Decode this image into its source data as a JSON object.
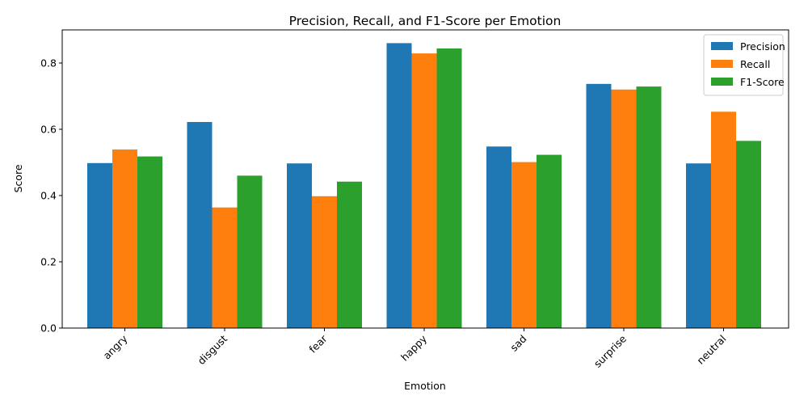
{
  "chart_data": {
    "type": "bar",
    "title": "Precision, Recall, and F1-Score per Emotion",
    "xlabel": "Emotion",
    "ylabel": "Score",
    "ylim": [
      0,
      0.9
    ],
    "yticks": [
      "0.0",
      "0.2",
      "0.4",
      "0.6",
      "0.8"
    ],
    "categories": [
      "angry",
      "disgust",
      "fear",
      "happy",
      "sad",
      "surprise",
      "neutral"
    ],
    "series": [
      {
        "name": "Precision",
        "color": "#1f77b4",
        "values": [
          0.498,
          0.622,
          0.497,
          0.86,
          0.548,
          0.737,
          0.497
        ]
      },
      {
        "name": "Recall",
        "color": "#ff7f0e",
        "values": [
          0.539,
          0.364,
          0.398,
          0.829,
          0.501,
          0.72,
          0.653
        ]
      },
      {
        "name": "F1-Score",
        "color": "#2ca02c",
        "values": [
          0.518,
          0.46,
          0.442,
          0.844,
          0.523,
          0.729,
          0.565
        ]
      }
    ],
    "legend_position": "top-right",
    "grid": false
  }
}
